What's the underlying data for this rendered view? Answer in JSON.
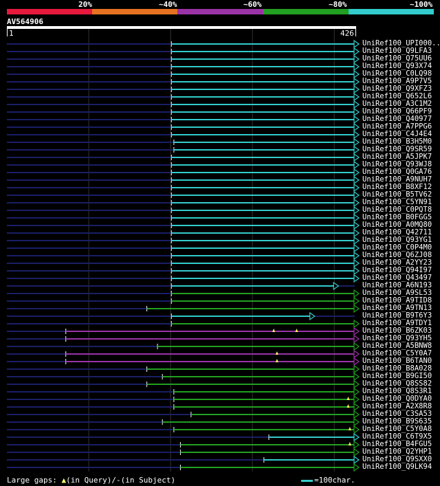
{
  "scale": {
    "segments": [
      "#e6193c",
      "#e67322",
      "#9933a6",
      "#22a022",
      "#33cccc"
    ],
    "labels": [
      "20%",
      "~40%",
      "~60%",
      "~80%",
      "~100%"
    ]
  },
  "query": {
    "id": "AV564906",
    "start": "1",
    "end": "426",
    "length": 426
  },
  "colors": {
    "cyan": "#33cccc",
    "green": "#22a022",
    "purple": "#9933a6",
    "navy": "#1a1f66",
    "grid": "#333333",
    "gap": "#ffff66"
  },
  "hits": [
    {
      "id": "UniRef100_UPI000..",
      "start": 202,
      "end": 426,
      "color": "cyan",
      "gaps": []
    },
    {
      "id": "UniRef100_Q9LFA3",
      "start": 202,
      "end": 426,
      "color": "cyan",
      "gaps": []
    },
    {
      "id": "UniRef100_Q75UU6",
      "start": 202,
      "end": 426,
      "color": "cyan",
      "gaps": []
    },
    {
      "id": "UniRef100_Q93X74",
      "start": 202,
      "end": 426,
      "color": "cyan",
      "gaps": []
    },
    {
      "id": "UniRef100_C0LQ98",
      "start": 202,
      "end": 426,
      "color": "cyan",
      "gaps": []
    },
    {
      "id": "UniRef100_A9P7V5",
      "start": 202,
      "end": 426,
      "color": "cyan",
      "gaps": []
    },
    {
      "id": "UniRef100_Q9XFZ3",
      "start": 202,
      "end": 426,
      "color": "cyan",
      "gaps": []
    },
    {
      "id": "UniRef100_Q652L6",
      "start": 202,
      "end": 426,
      "color": "cyan",
      "gaps": []
    },
    {
      "id": "UniRef100_A3C1M2",
      "start": 202,
      "end": 426,
      "color": "cyan",
      "gaps": []
    },
    {
      "id": "UniRef100_Q66PF9",
      "start": 202,
      "end": 426,
      "color": "cyan",
      "gaps": []
    },
    {
      "id": "UniRef100_Q40977",
      "start": 202,
      "end": 426,
      "color": "cyan",
      "gaps": []
    },
    {
      "id": "UniRef100_A7PPG6",
      "start": 202,
      "end": 426,
      "color": "cyan",
      "gaps": []
    },
    {
      "id": "UniRef100_C4J4E4",
      "start": 202,
      "end": 426,
      "color": "cyan",
      "gaps": []
    },
    {
      "id": "UniRef100_B3H5M0",
      "start": 205,
      "end": 426,
      "color": "cyan",
      "gaps": []
    },
    {
      "id": "UniRef100_Q9SR59",
      "start": 205,
      "end": 426,
      "color": "cyan",
      "gaps": []
    },
    {
      "id": "UniRef100_A5JPK7",
      "start": 202,
      "end": 426,
      "color": "cyan",
      "gaps": []
    },
    {
      "id": "UniRef100_Q93WJ8",
      "start": 202,
      "end": 426,
      "color": "cyan",
      "gaps": []
    },
    {
      "id": "UniRef100_Q0GA76",
      "start": 202,
      "end": 426,
      "color": "cyan",
      "gaps": []
    },
    {
      "id": "UniRef100_A9NUH7",
      "start": 202,
      "end": 426,
      "color": "cyan",
      "gaps": []
    },
    {
      "id": "UniRef100_B8XF12",
      "start": 202,
      "end": 426,
      "color": "cyan",
      "gaps": []
    },
    {
      "id": "UniRef100_B5TV62",
      "start": 202,
      "end": 426,
      "color": "cyan",
      "gaps": []
    },
    {
      "id": "UniRef100_C5YN91",
      "start": 202,
      "end": 426,
      "color": "cyan",
      "gaps": []
    },
    {
      "id": "UniRef100_C0PQT8",
      "start": 202,
      "end": 426,
      "color": "cyan",
      "gaps": []
    },
    {
      "id": "UniRef100_B0FGG5",
      "start": 202,
      "end": 426,
      "color": "cyan",
      "gaps": []
    },
    {
      "id": "UniRef100_A0MQ80",
      "start": 202,
      "end": 426,
      "color": "cyan",
      "gaps": []
    },
    {
      "id": "UniRef100_Q42711",
      "start": 202,
      "end": 426,
      "color": "cyan",
      "gaps": []
    },
    {
      "id": "UniRef100_Q93YG1",
      "start": 202,
      "end": 426,
      "color": "cyan",
      "gaps": []
    },
    {
      "id": "UniRef100_C0P4M0",
      "start": 202,
      "end": 426,
      "color": "cyan",
      "gaps": []
    },
    {
      "id": "UniRef100_Q6ZJ08",
      "start": 202,
      "end": 426,
      "color": "cyan",
      "gaps": []
    },
    {
      "id": "UniRef100_A2YY23",
      "start": 202,
      "end": 426,
      "color": "cyan",
      "gaps": []
    },
    {
      "id": "UniRef100_Q94I97",
      "start": 202,
      "end": 426,
      "color": "cyan",
      "gaps": []
    },
    {
      "id": "UniRef100_Q43497",
      "start": 202,
      "end": 426,
      "color": "cyan",
      "gaps": []
    },
    {
      "id": "UniRef100_A6N193",
      "start": 202,
      "end": 401,
      "color": "cyan",
      "gaps": []
    },
    {
      "id": "UniRef100_A9SL53",
      "start": 202,
      "end": 426,
      "color": "green",
      "gaps": []
    },
    {
      "id": "UniRef100_A9TID8",
      "start": 202,
      "end": 426,
      "color": "green",
      "gaps": []
    },
    {
      "id": "UniRef100_A9TN13",
      "start": 172,
      "end": 426,
      "color": "green",
      "gaps": []
    },
    {
      "id": "UniRef100_B9T6Y3",
      "start": 202,
      "end": 372,
      "color": "cyan",
      "gaps": []
    },
    {
      "id": "UniRef100_A9TDY1",
      "start": 202,
      "end": 426,
      "color": "green",
      "gaps": []
    },
    {
      "id": "UniRef100_B6ZK03",
      "start": 73,
      "end": 426,
      "color": "purple",
      "gaps": [
        327,
        355
      ]
    },
    {
      "id": "UniRef100_Q93YH5",
      "start": 73,
      "end": 426,
      "color": "purple",
      "gaps": []
    },
    {
      "id": "UniRef100_A5BNW8",
      "start": 185,
      "end": 426,
      "color": "green",
      "gaps": []
    },
    {
      "id": "UniRef100_C5Y0A7",
      "start": 73,
      "end": 426,
      "color": "purple",
      "gaps": [
        331
      ]
    },
    {
      "id": "UniRef100_B6TAN0",
      "start": 73,
      "end": 426,
      "color": "purple",
      "gaps": [
        331
      ]
    },
    {
      "id": "UniRef100_B8A028",
      "start": 172,
      "end": 426,
      "color": "green",
      "gaps": []
    },
    {
      "id": "UniRef100_B9GI50",
      "start": 191,
      "end": 426,
      "color": "green",
      "gaps": []
    },
    {
      "id": "UniRef100_Q8SS82",
      "start": 172,
      "end": 426,
      "color": "green",
      "gaps": []
    },
    {
      "id": "UniRef100_Q8S3R1",
      "start": 205,
      "end": 426,
      "color": "green",
      "gaps": []
    },
    {
      "id": "UniRef100_Q0DYA0",
      "start": 205,
      "end": 426,
      "color": "green",
      "gaps": [
        418
      ]
    },
    {
      "id": "UniRef100_A2X8R8",
      "start": 205,
      "end": 426,
      "color": "green",
      "gaps": [
        418
      ]
    },
    {
      "id": "UniRef100_C3SA53",
      "start": 226,
      "end": 426,
      "color": "green",
      "gaps": []
    },
    {
      "id": "UniRef100_B9S635",
      "start": 191,
      "end": 426,
      "color": "green",
      "gaps": []
    },
    {
      "id": "UniRef100_C5Y0A8",
      "start": 205,
      "end": 426,
      "color": "green",
      "gaps": [
        420
      ]
    },
    {
      "id": "UniRef100_C6T9X5",
      "start": 321,
      "end": 426,
      "color": "cyan",
      "gaps": []
    },
    {
      "id": "UniRef100_B4FGU5",
      "start": 213,
      "end": 426,
      "color": "green",
      "gaps": [
        420
      ]
    },
    {
      "id": "UniRef100_Q2YHP1",
      "start": 213,
      "end": 426,
      "color": "green",
      "gaps": []
    },
    {
      "id": "UniRef100_Q9SXX0",
      "start": 315,
      "end": 426,
      "color": "cyan",
      "gaps": []
    },
    {
      "id": "UniRef100_Q9LK94",
      "start": 213,
      "end": 426,
      "color": "green",
      "gaps": []
    }
  ],
  "footer": {
    "gaps_label": "Large gaps:",
    "query_gap": "(in Query)/-",
    "subject_gap": "(in Subject)",
    "legend": "=100char."
  }
}
